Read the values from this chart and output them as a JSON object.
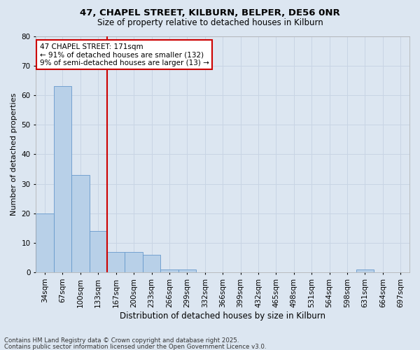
{
  "title1": "47, CHAPEL STREET, KILBURN, BELPER, DE56 0NR",
  "title2": "Size of property relative to detached houses in Kilburn",
  "xlabel": "Distribution of detached houses by size in Kilburn",
  "ylabel": "Number of detached properties",
  "categories": [
    "34sqm",
    "67sqm",
    "100sqm",
    "133sqm",
    "167sqm",
    "200sqm",
    "233sqm",
    "266sqm",
    "299sqm",
    "332sqm",
    "366sqm",
    "399sqm",
    "432sqm",
    "465sqm",
    "498sqm",
    "531sqm",
    "564sqm",
    "598sqm",
    "631sqm",
    "664sqm",
    "697sqm"
  ],
  "values": [
    20,
    63,
    33,
    14,
    7,
    7,
    6,
    1,
    1,
    0,
    0,
    0,
    0,
    0,
    0,
    0,
    0,
    0,
    1,
    0,
    0
  ],
  "bar_color": "#b8d0e8",
  "bar_edge_color": "#6699cc",
  "vline_index": 4,
  "vline_color": "#cc0000",
  "annotation_text": "47 CHAPEL STREET: 171sqm\n← 91% of detached houses are smaller (132)\n9% of semi-detached houses are larger (13) →",
  "annotation_box_color": "#cc0000",
  "annotation_text_color": "#000000",
  "annotation_bg": "#ffffff",
  "ylim": [
    0,
    80
  ],
  "yticks": [
    0,
    10,
    20,
    30,
    40,
    50,
    60,
    70,
    80
  ],
  "grid_color": "#c8d4e4",
  "background_color": "#dce6f1",
  "plot_bg_color": "#dce6f1",
  "footer1": "Contains HM Land Registry data © Crown copyright and database right 2025.",
  "footer2": "Contains public sector information licensed under the Open Government Licence v3.0."
}
